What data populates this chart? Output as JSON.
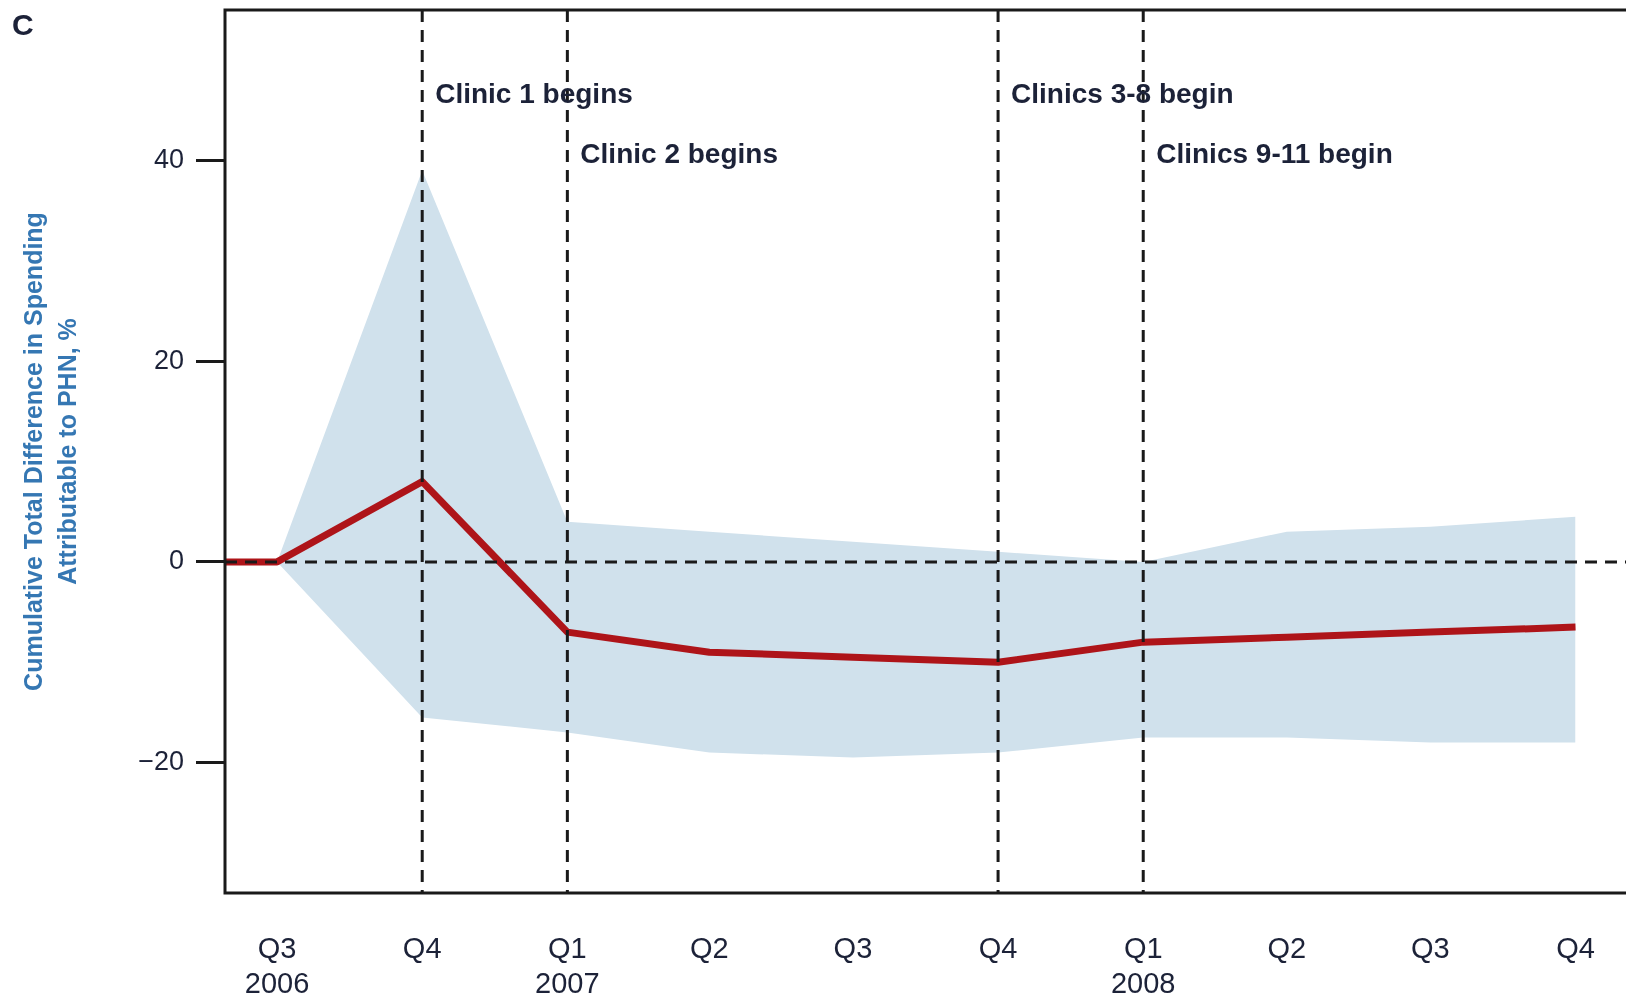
{
  "chart_data": {
    "type": "line",
    "title": "C",
    "ylabel": "Cumulative Total Difference in Spending\nAttributable to PHN, %",
    "x": [
      "2006-05-29",
      "2006-07",
      "2006-10",
      "2007-01",
      "2007-04",
      "2007-07",
      "2007-10",
      "2008-01",
      "2008-04",
      "2008-07",
      "2008-10"
    ],
    "series": [
      {
        "color": "#ae1419",
        "values": [
          0,
          0,
          8,
          -7,
          -9,
          -9.5,
          -10,
          -8,
          -7.5,
          -7,
          -6.5
        ],
        "lower": [
          null,
          0,
          -15.5,
          -17,
          -19,
          -19.5,
          -19,
          -17.5,
          -17.5,
          -18,
          -18
        ],
        "upper": [
          null,
          0,
          39,
          4,
          3,
          2,
          1,
          0,
          3,
          3.5,
          4.5
        ]
      }
    ],
    "xlim": [
      "2006-05-29",
      "2008-11-02"
    ],
    "xticks": [
      {
        "value": "2006-07",
        "label": "Q3\n2006"
      },
      {
        "value": "2006-10",
        "label": "Q4"
      },
      {
        "value": "2007-01",
        "label": "Q1\n2007"
      },
      {
        "value": "2007-04",
        "label": "Q2"
      },
      {
        "value": "2007-07",
        "label": "Q3"
      },
      {
        "value": "2007-10",
        "label": "Q4"
      },
      {
        "value": "2008-01",
        "label": "Q1\n2008"
      },
      {
        "value": "2008-04",
        "label": "Q2"
      },
      {
        "value": "2008-07",
        "label": "Q3"
      },
      {
        "value": "2008-10",
        "label": "Q4"
      }
    ],
    "ylim": [
      -33,
      55
    ],
    "yticks": [
      -20,
      0,
      20,
      40
    ],
    "ref_lines": [
      {
        "axis": "y",
        "value": 0,
        "line_style": "dashed"
      },
      {
        "axis": "x",
        "value": "2006-10",
        "label": "Clinic 1 begins",
        "line_style": "dashed"
      },
      {
        "axis": "x",
        "value": "2007-01",
        "label": "Clinic 2 begins",
        "line_style": "dashed"
      },
      {
        "axis": "x",
        "value": "2007-10",
        "label": "Clinics 3-8 begin",
        "line_style": "dashed"
      },
      {
        "axis": "x",
        "value": "2008-01",
        "label": "Clinics 9-11 begin",
        "line_style": "dashed"
      }
    ],
    "marker": "none"
  }
}
